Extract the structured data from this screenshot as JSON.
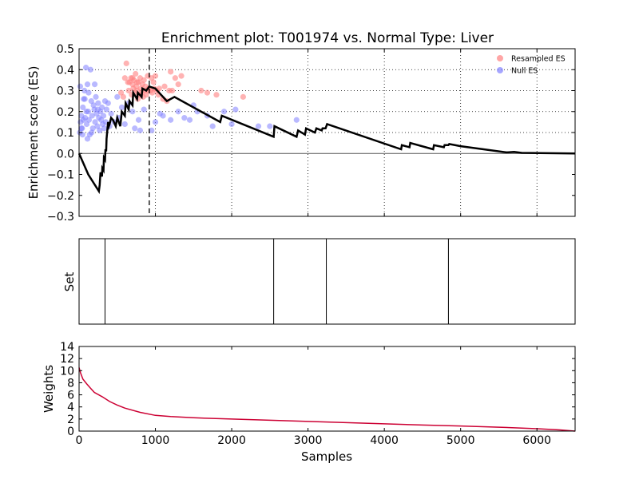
{
  "figure": {
    "title": "Enrichment plot: T001974 vs. Normal Type: Liver"
  },
  "chart_data": [
    {
      "type": "line",
      "name": "enrichment-panel",
      "ylabel": "Enrichment score (ES)",
      "xlim": [
        0,
        6500
      ],
      "ylim": [
        -0.3,
        0.5
      ],
      "yticks": [
        -0.3,
        -0.2,
        -0.1,
        0.0,
        0.1,
        0.2,
        0.3,
        0.4,
        0.5
      ],
      "ytick_labels": [
        "−0.3",
        "−0.2",
        "−0.1",
        "0.0",
        "0.1",
        "0.2",
        "0.3",
        "0.4",
        "0.5"
      ],
      "xgrid": [
        1000,
        2000,
        3000,
        4000,
        5000,
        6000
      ],
      "ygrid": [
        0.1,
        0.2,
        0.3,
        0.4
      ],
      "grid": "dotted",
      "zero_line": 0,
      "max_es_marker_x": 920,
      "legend_placement": "top-right",
      "legend": [
        {
          "label": "Resampled ES",
          "color": "#ff8080"
        },
        {
          "label": "Null ES",
          "color": "#8080ff"
        }
      ],
      "running_es": [
        [
          0,
          0.0
        ],
        [
          120,
          -0.1
        ],
        [
          260,
          -0.18
        ],
        [
          270,
          -0.15
        ],
        [
          280,
          -0.09
        ],
        [
          300,
          -0.11
        ],
        [
          305,
          -0.07
        ],
        [
          320,
          -0.08
        ],
        [
          325,
          -0.02
        ],
        [
          340,
          -0.03
        ],
        [
          345,
          0.02
        ],
        [
          355,
          0.01
        ],
        [
          360,
          0.07
        ],
        [
          380,
          0.15
        ],
        [
          390,
          0.13
        ],
        [
          400,
          0.14
        ],
        [
          420,
          0.17
        ],
        [
          445,
          0.16
        ],
        [
          480,
          0.13
        ],
        [
          500,
          0.17
        ],
        [
          540,
          0.13
        ],
        [
          560,
          0.2
        ],
        [
          600,
          0.18
        ],
        [
          610,
          0.24
        ],
        [
          650,
          0.21
        ],
        [
          660,
          0.25
        ],
        [
          700,
          0.23
        ],
        [
          710,
          0.29
        ],
        [
          760,
          0.26
        ],
        [
          770,
          0.29
        ],
        [
          820,
          0.27
        ],
        [
          830,
          0.31
        ],
        [
          880,
          0.3
        ],
        [
          920,
          0.32
        ],
        [
          1000,
          0.31
        ],
        [
          1150,
          0.25
        ],
        [
          1250,
          0.27
        ],
        [
          1850,
          0.15
        ],
        [
          1870,
          0.18
        ],
        [
          2550,
          0.08
        ],
        [
          2560,
          0.13
        ],
        [
          2850,
          0.08
        ],
        [
          2870,
          0.11
        ],
        [
          2960,
          0.09
        ],
        [
          2975,
          0.12
        ],
        [
          3090,
          0.1
        ],
        [
          3110,
          0.12
        ],
        [
          3180,
          0.11
        ],
        [
          3190,
          0.12
        ],
        [
          3230,
          0.12
        ],
        [
          3250,
          0.14
        ],
        [
          4220,
          0.02
        ],
        [
          4230,
          0.04
        ],
        [
          4330,
          0.03
        ],
        [
          4340,
          0.05
        ],
        [
          4640,
          0.02
        ],
        [
          4650,
          0.04
        ],
        [
          4780,
          0.03
        ],
        [
          4790,
          0.04
        ],
        [
          4840,
          0.04
        ],
        [
          4850,
          0.045
        ],
        [
          5000,
          0.035
        ],
        [
          5600,
          0.005
        ],
        [
          5700,
          0.008
        ],
        [
          5800,
          0.003
        ],
        [
          6500,
          0.0
        ]
      ],
      "series": [
        {
          "name": "Resampled ES",
          "color": "#ff8080",
          "points": [
            [
              600,
              0.36
            ],
            [
              620,
              0.43
            ],
            [
              650,
              0.3
            ],
            [
              660,
              0.34
            ],
            [
              680,
              0.36
            ],
            [
              690,
              0.28
            ],
            [
              700,
              0.33
            ],
            [
              710,
              0.31
            ],
            [
              720,
              0.35
            ],
            [
              730,
              0.29
            ],
            [
              740,
              0.38
            ],
            [
              750,
              0.32
            ],
            [
              760,
              0.3
            ],
            [
              770,
              0.26
            ],
            [
              780,
              0.34
            ],
            [
              790,
              0.28
            ],
            [
              800,
              0.36
            ],
            [
              810,
              0.31
            ],
            [
              820,
              0.29
            ],
            [
              830,
              0.33
            ],
            [
              840,
              0.27
            ],
            [
              850,
              0.35
            ],
            [
              860,
              0.3
            ],
            [
              870,
              0.32
            ],
            [
              880,
              0.28
            ],
            [
              900,
              0.37
            ],
            [
              910,
              0.31
            ],
            [
              940,
              0.3
            ],
            [
              950,
              0.36
            ],
            [
              960,
              0.29
            ],
            [
              975,
              0.34
            ],
            [
              985,
              0.31
            ],
            [
              1000,
              0.37
            ],
            [
              1020,
              0.3
            ],
            [
              1040,
              0.28
            ],
            [
              1100,
              0.26
            ],
            [
              1120,
              0.32
            ],
            [
              1150,
              0.25
            ],
            [
              1180,
              0.3
            ],
            [
              1200,
              0.39
            ],
            [
              1220,
              0.3
            ],
            [
              1260,
              0.36
            ],
            [
              1300,
              0.33
            ],
            [
              1340,
              0.37
            ],
            [
              1600,
              0.3
            ],
            [
              1680,
              0.29
            ],
            [
              1800,
              0.28
            ],
            [
              2150,
              0.27
            ],
            [
              550,
              0.29
            ],
            [
              580,
              0.27
            ],
            [
              640,
              0.34
            ],
            [
              700,
              0.36
            ],
            [
              760,
              0.34
            ],
            [
              900,
              0.3
            ],
            [
              1050,
              0.31
            ]
          ]
        },
        {
          "name": "Null ES",
          "color": "#8080ff",
          "points": [
            [
              10,
              0.1
            ],
            [
              20,
              0.15
            ],
            [
              30,
              0.18
            ],
            [
              40,
              0.12
            ],
            [
              50,
              0.22
            ],
            [
              60,
              0.26
            ],
            [
              70,
              0.3
            ],
            [
              80,
              0.17
            ],
            [
              90,
              0.41
            ],
            [
              100,
              0.14
            ],
            [
              110,
              0.33
            ],
            [
              120,
              0.2
            ],
            [
              130,
              0.16
            ],
            [
              140,
              0.09
            ],
            [
              150,
              0.4
            ],
            [
              160,
              0.25
            ],
            [
              170,
              0.18
            ],
            [
              180,
              0.12
            ],
            [
              190,
              0.23
            ],
            [
              200,
              0.21
            ],
            [
              210,
              0.15
            ],
            [
              220,
              0.27
            ],
            [
              230,
              0.19
            ],
            [
              240,
              0.13
            ],
            [
              250,
              0.24
            ],
            [
              260,
              0.17
            ],
            [
              270,
              0.11
            ],
            [
              280,
              0.2
            ],
            [
              290,
              0.16
            ],
            [
              300,
              0.22
            ],
            [
              310,
              0.14
            ],
            [
              320,
              0.18
            ],
            [
              330,
              0.12
            ],
            [
              340,
              0.25
            ],
            [
              350,
              0.15
            ],
            [
              360,
              0.21
            ],
            [
              380,
              0.24
            ],
            [
              400,
              0.13
            ],
            [
              420,
              0.19
            ],
            [
              460,
              0.15
            ],
            [
              500,
              0.27
            ],
            [
              520,
              0.17
            ],
            [
              560,
              0.22
            ],
            [
              600,
              0.14
            ],
            [
              650,
              0.24
            ],
            [
              700,
              0.2
            ],
            [
              730,
              0.12
            ],
            [
              780,
              0.16
            ],
            [
              800,
              0.11
            ],
            [
              850,
              0.21
            ],
            [
              950,
              0.11
            ],
            [
              1000,
              0.15
            ],
            [
              1060,
              0.19
            ],
            [
              1100,
              0.18
            ],
            [
              1200,
              0.16
            ],
            [
              1300,
              0.2
            ],
            [
              1380,
              0.17
            ],
            [
              1450,
              0.16
            ],
            [
              1500,
              0.23
            ],
            [
              1550,
              0.2
            ],
            [
              1680,
              0.18
            ],
            [
              1750,
              0.13
            ],
            [
              1900,
              0.2
            ],
            [
              2000,
              0.14
            ],
            [
              2050,
              0.21
            ],
            [
              2350,
              0.13
            ],
            [
              2500,
              0.13
            ],
            [
              2850,
              0.16
            ],
            [
              15,
              0.32
            ],
            [
              45,
              0.09
            ],
            [
              75,
              0.26
            ],
            [
              110,
              0.07
            ],
            [
              165,
              0.1
            ],
            [
              205,
              0.33
            ],
            [
              245,
              0.21
            ],
            [
              30,
              0.12
            ],
            [
              55,
              0.16
            ],
            [
              95,
              0.2
            ],
            [
              125,
              0.29
            ]
          ]
        }
      ]
    },
    {
      "type": "event",
      "name": "set-panel",
      "ylabel": "Set",
      "xlim": [
        0,
        6500
      ],
      "positions": [
        340,
        2550,
        3240,
        4840
      ]
    },
    {
      "type": "area",
      "name": "weights-panel",
      "ylabel": "Weights",
      "xlabel": "Samples",
      "xlim": [
        0,
        6500
      ],
      "ylim": [
        0,
        14
      ],
      "yticks": [
        0,
        2,
        4,
        6,
        8,
        10,
        12,
        14
      ],
      "xticks": [
        0,
        1000,
        2000,
        3000,
        4000,
        5000,
        6000
      ],
      "color": "#cc0033",
      "values": [
        [
          0,
          10.5
        ],
        [
          20,
          9.6
        ],
        [
          50,
          8.6
        ],
        [
          100,
          7.8
        ],
        [
          150,
          7.1
        ],
        [
          200,
          6.4
        ],
        [
          300,
          5.7
        ],
        [
          400,
          4.9
        ],
        [
          500,
          4.3
        ],
        [
          600,
          3.8
        ],
        [
          800,
          3.1
        ],
        [
          1000,
          2.6
        ],
        [
          1200,
          2.4
        ],
        [
          1500,
          2.2
        ],
        [
          2000,
          2.0
        ],
        [
          2500,
          1.8
        ],
        [
          3000,
          1.6
        ],
        [
          3500,
          1.4
        ],
        [
          4000,
          1.2
        ],
        [
          4500,
          1.0
        ],
        [
          5000,
          0.85
        ],
        [
          5500,
          0.65
        ],
        [
          6000,
          0.4
        ],
        [
          6300,
          0.2
        ],
        [
          6500,
          0.0
        ]
      ]
    }
  ]
}
